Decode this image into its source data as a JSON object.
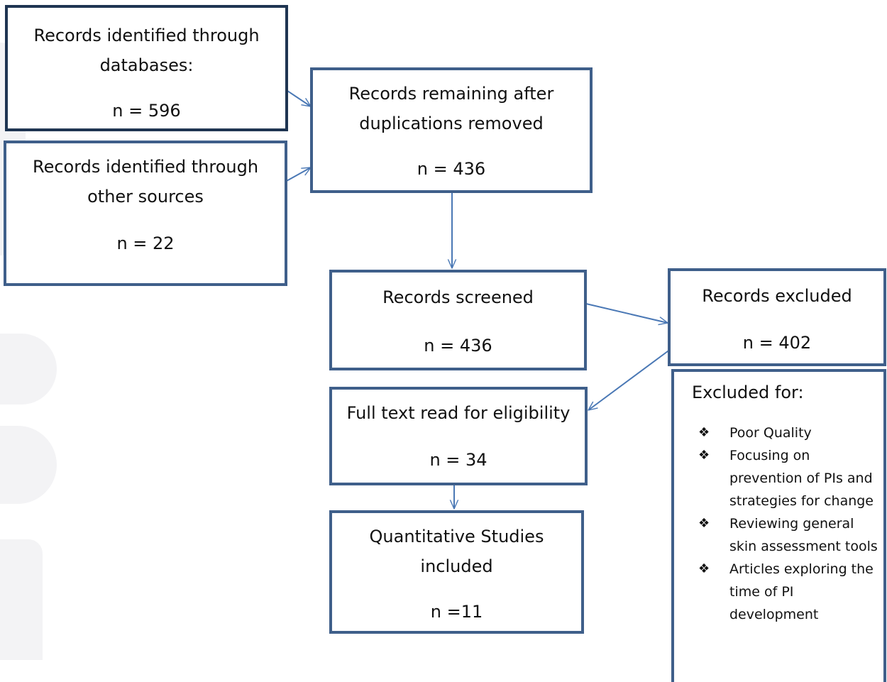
{
  "diagram": {
    "boxes": {
      "databases": {
        "line1": "Records identified through",
        "line2": "databases:",
        "count": "n = 596"
      },
      "other_sources": {
        "line1": "Records identified through",
        "line2": "other sources",
        "count": "n = 22"
      },
      "after_duplicates": {
        "line1": "Records remaining after",
        "line2": "duplications removed",
        "count": "n = 436"
      },
      "screened": {
        "line1": "Records screened",
        "count": "n = 436"
      },
      "excluded": {
        "line1": "Records excluded",
        "count": "n = 402"
      },
      "full_text": {
        "line1": "Full text read for eligibility",
        "count": "n = 34"
      },
      "included": {
        "line1": "Quantitative Studies",
        "line2": "included",
        "count": "n =11"
      }
    },
    "exclusion_reasons": {
      "title": "Excluded for:",
      "bullet": "❖",
      "items": [
        {
          "label": "Poor Quality"
        },
        {
          "label": "Focusing on prevention of PIs and strategies for change"
        },
        {
          "label": "Reviewing general skin assessment tools"
        },
        {
          "label": "Articles exploring the time of PI development"
        }
      ]
    },
    "colors": {
      "box_border": "#3f5f8a",
      "arrow": "#4a78b5",
      "watermark": "#f3f3f5"
    }
  }
}
